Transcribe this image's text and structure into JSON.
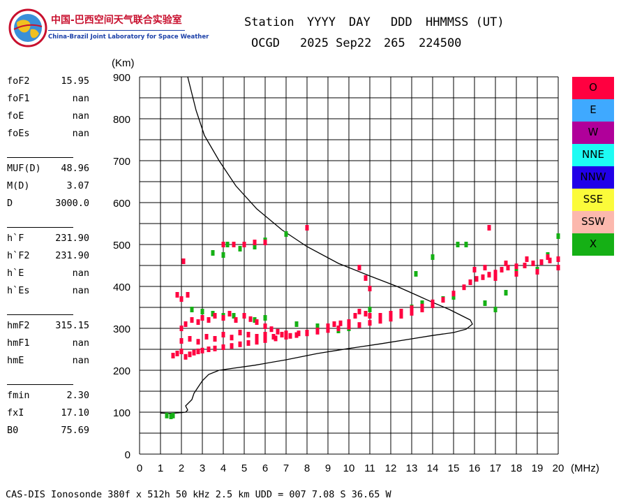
{
  "logo": {
    "cn_text": "中国-巴西空间天气联合实验室",
    "en_text": "China-Brazil Joint Laboratory for Space Weather"
  },
  "header": {
    "labels": [
      "Station",
      "YYYY",
      "DAY",
      "DDD",
      "HHMMSS (UT)"
    ],
    "values": [
      "OCGD",
      "2025 Sep22",
      "265",
      "224500"
    ]
  },
  "params": {
    "group1": [
      {
        "key": "foF2",
        "value": "15.95"
      },
      {
        "key": "foF1",
        "value": "nan"
      },
      {
        "key": "foE",
        "value": "nan"
      },
      {
        "key": "foEs",
        "value": "nan"
      }
    ],
    "group2": [
      {
        "key": "MUF(D)",
        "value": "48.96"
      },
      {
        "key": "M(D)",
        "value": "3.07"
      },
      {
        "key": "D",
        "value": "3000.0"
      }
    ],
    "group3": [
      {
        "key": "h`F",
        "value": "231.90"
      },
      {
        "key": "h`F2",
        "value": "231.90"
      },
      {
        "key": "h`E",
        "value": "nan"
      },
      {
        "key": "h`Es",
        "value": "nan"
      }
    ],
    "group4": [
      {
        "key": "hmF2",
        "value": "315.15"
      },
      {
        "key": "hmF1",
        "value": "nan"
      },
      {
        "key": "hmE",
        "value": "nan"
      }
    ],
    "group5": [
      {
        "key": "fmin",
        "value": "2.30"
      },
      {
        "key": "fxI",
        "value": "17.10"
      },
      {
        "key": "B0",
        "value": "75.69"
      }
    ]
  },
  "legend": [
    {
      "label": "O",
      "color": "#ff0040"
    },
    {
      "label": "E",
      "color": "#3fa9ff"
    },
    {
      "label": "W",
      "color": "#b0009a"
    },
    {
      "label": "NNE",
      "color": "#1dfcf4"
    },
    {
      "label": "NNW",
      "color": "#2100e8"
    },
    {
      "label": "SSE",
      "color": "#fbfb3a"
    },
    {
      "label": "SSW",
      "color": "#fcb8ad"
    },
    {
      "label": "X",
      "color": "#15b015"
    }
  ],
  "footer": "CAS-DIS Ionosonde 380f x 512h 50 kHz 2.5 km UDD = 007 7.08 S 36.65 W",
  "chart_data": {
    "type": "scatter",
    "title": "",
    "xlabel": "(MHz)",
    "ylabel": "(Km)",
    "xlim": [
      0,
      20
    ],
    "ylim": [
      0,
      900
    ],
    "x_ticks": [
      0,
      1,
      2,
      3,
      4,
      5,
      6,
      7,
      8,
      9,
      10,
      11,
      12,
      13,
      14,
      15,
      16,
      17,
      18,
      19,
      20
    ],
    "y_ticks": [
      0,
      100,
      200,
      300,
      400,
      500,
      600,
      700,
      800,
      900
    ],
    "grid": true,
    "legend_position": "right",
    "series": [
      {
        "name": "O",
        "color": "#ff0040",
        "points": [
          [
            1.6,
            235
          ],
          [
            1.8,
            240
          ],
          [
            2.0,
            245
          ],
          [
            2.2,
            232
          ],
          [
            2.4,
            238
          ],
          [
            2.6,
            242
          ],
          [
            2.8,
            245
          ],
          [
            3.0,
            247
          ],
          [
            3.3,
            250
          ],
          [
            3.6,
            252
          ],
          [
            4.0,
            255
          ],
          [
            4.4,
            258
          ],
          [
            4.8,
            262
          ],
          [
            5.2,
            265
          ],
          [
            5.6,
            268
          ],
          [
            6.0,
            272
          ],
          [
            6.5,
            276
          ],
          [
            7.0,
            280
          ],
          [
            7.5,
            284
          ],
          [
            8.0,
            288
          ],
          [
            8.5,
            292
          ],
          [
            9.0,
            296
          ],
          [
            9.5,
            300
          ],
          [
            10.0,
            304
          ],
          [
            10.5,
            308
          ],
          [
            11.0,
            313
          ],
          [
            11.5,
            318
          ],
          [
            12.0,
            323
          ],
          [
            12.5,
            330
          ],
          [
            13.0,
            337
          ],
          [
            13.5,
            345
          ],
          [
            14.0,
            355
          ],
          [
            14.5,
            368
          ],
          [
            15.0,
            383
          ],
          [
            15.5,
            398
          ],
          [
            15.8,
            410
          ],
          [
            16.1,
            418
          ],
          [
            16.4,
            422
          ],
          [
            16.7,
            428
          ],
          [
            17.0,
            433
          ],
          [
            17.3,
            440
          ],
          [
            17.6,
            445
          ],
          [
            18.0,
            448
          ],
          [
            18.4,
            450
          ],
          [
            18.8,
            455
          ],
          [
            19.2,
            458
          ],
          [
            19.6,
            462
          ],
          [
            20.0,
            465
          ],
          [
            2.0,
            300
          ],
          [
            2.2,
            310
          ],
          [
            2.5,
            320
          ],
          [
            2.8,
            315
          ],
          [
            3.0,
            325
          ],
          [
            3.3,
            320
          ],
          [
            3.6,
            330
          ],
          [
            4.0,
            325
          ],
          [
            4.3,
            335
          ],
          [
            4.6,
            320
          ],
          [
            5.0,
            330
          ],
          [
            5.3,
            322
          ],
          [
            5.6,
            315
          ],
          [
            6.0,
            305
          ],
          [
            6.3,
            298
          ],
          [
            6.6,
            292
          ],
          [
            7.0,
            288
          ],
          [
            2.0,
            270
          ],
          [
            2.4,
            275
          ],
          [
            2.8,
            268
          ],
          [
            3.2,
            280
          ],
          [
            3.6,
            275
          ],
          [
            4.0,
            285
          ],
          [
            4.4,
            278
          ],
          [
            4.8,
            290
          ],
          [
            5.2,
            285
          ],
          [
            5.6,
            280
          ],
          [
            6.0,
            285
          ],
          [
            6.4,
            280
          ],
          [
            6.8,
            285
          ],
          [
            7.2,
            282
          ],
          [
            7.6,
            288
          ],
          [
            8.0,
            290
          ],
          [
            8.5,
            295
          ],
          [
            9.0,
            305
          ],
          [
            9.3,
            310
          ],
          [
            9.6,
            312
          ],
          [
            10.0,
            315
          ],
          [
            10.3,
            330
          ],
          [
            10.5,
            340
          ],
          [
            10.8,
            335
          ],
          [
            11.0,
            330
          ],
          [
            11.5,
            330
          ],
          [
            12.0,
            335
          ],
          [
            12.5,
            340
          ],
          [
            13.0,
            348
          ],
          [
            13.5,
            352
          ],
          [
            14.0,
            362
          ],
          [
            16.0,
            440
          ],
          [
            16.5,
            445
          ],
          [
            17.0,
            420
          ],
          [
            17.5,
            455
          ],
          [
            18.0,
            430
          ],
          [
            18.5,
            465
          ],
          [
            19.0,
            435
          ],
          [
            19.5,
            470
          ],
          [
            20.0,
            445
          ],
          [
            1.8,
            380
          ],
          [
            2.0,
            370
          ],
          [
            2.3,
            380
          ],
          [
            4.0,
            500
          ],
          [
            4.5,
            500
          ],
          [
            5.0,
            500
          ],
          [
            5.5,
            505
          ],
          [
            6.0,
            505
          ],
          [
            8.0,
            540
          ],
          [
            2.1,
            460
          ],
          [
            10.5,
            445
          ],
          [
            10.8,
            420
          ],
          [
            11.0,
            395
          ],
          [
            16.7,
            540
          ]
        ]
      },
      {
        "name": "X",
        "color": "#15b015",
        "points": [
          [
            1.3,
            92
          ],
          [
            1.5,
            90
          ],
          [
            1.6,
            92
          ],
          [
            2.5,
            345
          ],
          [
            3.0,
            340
          ],
          [
            3.5,
            335
          ],
          [
            4.0,
            330
          ],
          [
            4.5,
            330
          ],
          [
            5.0,
            330
          ],
          [
            5.5,
            320
          ],
          [
            6.0,
            325
          ],
          [
            7.5,
            310
          ],
          [
            8.5,
            305
          ],
          [
            9.0,
            300
          ],
          [
            9.5,
            295
          ],
          [
            10.0,
            300
          ],
          [
            11.0,
            345
          ],
          [
            12.0,
            330
          ],
          [
            13.0,
            350
          ],
          [
            13.5,
            360
          ],
          [
            14.5,
            370
          ],
          [
            15.0,
            375
          ],
          [
            16.5,
            360
          ],
          [
            17.0,
            345
          ],
          [
            17.5,
            385
          ],
          [
            18.0,
            435
          ],
          [
            19.0,
            440
          ],
          [
            19.5,
            475
          ],
          [
            20.0,
            520
          ],
          [
            3.5,
            480
          ],
          [
            4.0,
            475
          ],
          [
            4.2,
            500
          ],
          [
            4.8,
            490
          ],
          [
            5.5,
            495
          ],
          [
            6.0,
            510
          ],
          [
            7.0,
            525
          ],
          [
            8.0,
            540
          ],
          [
            13.2,
            430
          ],
          [
            14.0,
            470
          ],
          [
            15.2,
            500
          ],
          [
            15.6,
            500
          ]
        ]
      }
    ],
    "model_curve": {
      "points": [
        [
          1.0,
          98
        ],
        [
          1.5,
          97
        ],
        [
          2.0,
          99
        ],
        [
          2.2,
          100
        ],
        [
          2.3,
          105
        ],
        [
          2.2,
          115
        ],
        [
          2.3,
          120
        ],
        [
          2.5,
          130
        ],
        [
          2.6,
          145
        ],
        [
          2.8,
          160
        ],
        [
          3.0,
          175
        ],
        [
          3.3,
          190
        ],
        [
          3.8,
          200
        ],
        [
          4.5,
          205
        ],
        [
          5.5,
          212
        ],
        [
          7.0,
          225
        ],
        [
          8.5,
          240
        ],
        [
          10.0,
          252
        ],
        [
          11.5,
          263
        ],
        [
          13.0,
          275
        ],
        [
          14.0,
          283
        ],
        [
          15.0,
          290
        ],
        [
          15.6,
          298
        ],
        [
          15.9,
          310
        ],
        [
          15.8,
          320
        ],
        [
          15.4,
          330
        ],
        [
          14.8,
          345
        ],
        [
          14.0,
          362
        ],
        [
          13.2,
          380
        ],
        [
          12.3,
          400
        ],
        [
          11.0,
          425
        ],
        [
          9.5,
          455
        ],
        [
          8.0,
          495
        ],
        [
          6.8,
          535
        ],
        [
          5.6,
          585
        ],
        [
          4.6,
          640
        ],
        [
          3.8,
          700
        ],
        [
          3.1,
          760
        ],
        [
          2.7,
          820
        ],
        [
          2.4,
          880
        ],
        [
          2.3,
          900
        ]
      ]
    }
  }
}
